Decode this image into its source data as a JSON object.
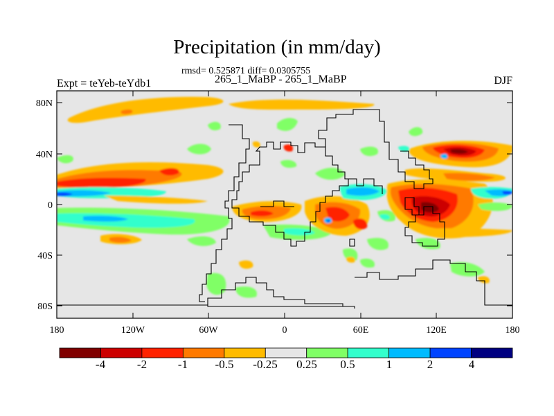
{
  "title": "Precipitation (in mm/day)",
  "stats_line": "rmsd= 0.525871 diff= 0.0305755",
  "case_line": "265_1_MaBP - 265_1_MaBP",
  "experiment_label": "Expt = teYeb-teYdb1",
  "season": "DJF",
  "map": {
    "lat_labels": [
      "80N",
      "40N",
      "0",
      "40S",
      "80S"
    ],
    "lon_labels": [
      "180",
      "120W",
      "60W",
      "0",
      "60E",
      "120E",
      "180"
    ],
    "background_color": "#e6e6e6",
    "coast_color": "#000000"
  },
  "colorbar": {
    "colors": [
      "#800000",
      "#cc0000",
      "#ff2200",
      "#ff7a00",
      "#ffbb00",
      "#e6e6e6",
      "#80ff66",
      "#33ffcc",
      "#00bbff",
      "#0044ff",
      "#000080"
    ],
    "labels": [
      "-4",
      "-2",
      "-1",
      "-0.5",
      "-0.25",
      "0.25",
      "0.5",
      "1",
      "2",
      "4"
    ]
  }
}
